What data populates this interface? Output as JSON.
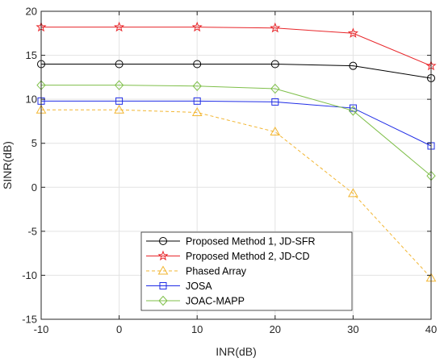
{
  "chart_data": {
    "type": "line",
    "xlabel": "INR(dB)",
    "ylabel": "SINR(dB)",
    "xlim": [
      -10,
      40
    ],
    "ylim": [
      -15,
      20
    ],
    "x": [
      -10,
      0,
      10,
      20,
      30,
      40
    ],
    "xticks": [
      "-10",
      "0",
      "10",
      "20",
      "30",
      "40"
    ],
    "yticks": [
      "-15",
      "-10",
      "-5",
      "0",
      "5",
      "10",
      "15",
      "20"
    ],
    "grid": true,
    "legend_position": "bottom-center",
    "series": [
      {
        "name": "Proposed Method 1, JD-SFR",
        "values": [
          14.0,
          14.0,
          14.0,
          14.0,
          13.8,
          12.4
        ],
        "color": "#000000",
        "marker": "circle",
        "dash": "solid"
      },
      {
        "name": "Proposed Method 2, JD-CD",
        "values": [
          18.2,
          18.2,
          18.2,
          18.1,
          17.5,
          13.8
        ],
        "color": "#e8262a",
        "marker": "star",
        "dash": "solid"
      },
      {
        "name": "Phased Array",
        "values": [
          8.8,
          8.8,
          8.5,
          6.3,
          -0.7,
          -10.3
        ],
        "color": "#f2b632",
        "marker": "triangle",
        "dash": "dashed"
      },
      {
        "name": "JOSA",
        "values": [
          9.8,
          9.8,
          9.8,
          9.7,
          9.0,
          4.7
        ],
        "color": "#1f2ce6",
        "marker": "square",
        "dash": "solid"
      },
      {
        "name": "JOAC-MAPP",
        "values": [
          11.6,
          11.6,
          11.5,
          11.2,
          8.7,
          1.3
        ],
        "color": "#7fbf4a",
        "marker": "diamond",
        "dash": "solid"
      }
    ]
  }
}
